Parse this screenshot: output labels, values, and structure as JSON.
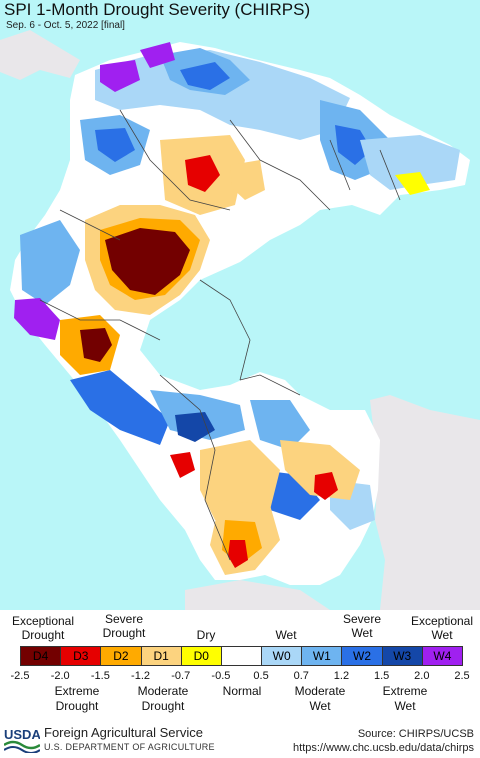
{
  "map": {
    "title": "SPI 1-Month Drought Severity (CHIRPS)",
    "subtitle": "Sep. 6 - Oct. 5, 2022 [final]"
  },
  "legend": {
    "top_labels": {
      "exceptional_drought": "Exceptional Drought",
      "severe_drought": "Severe Drought",
      "dry": "Dry",
      "wet": "Wet",
      "severe_wet": "Severe Wet",
      "exceptional_wet": "Exceptional Wet"
    },
    "categories": [
      {
        "code": "D4",
        "color": "#730000"
      },
      {
        "code": "D3",
        "color": "#e60000"
      },
      {
        "code": "D2",
        "color": "#ffaa00"
      },
      {
        "code": "D1",
        "color": "#fcd37f"
      },
      {
        "code": "D0",
        "color": "#ffff00"
      },
      {
        "code": "",
        "color": "#ffffff"
      },
      {
        "code": "W0",
        "color": "#aad7f7"
      },
      {
        "code": "W1",
        "color": "#6eb4f0"
      },
      {
        "code": "W2",
        "color": "#2a70e6"
      },
      {
        "code": "W3",
        "color": "#1447a8"
      },
      {
        "code": "W4",
        "color": "#a020f0"
      }
    ],
    "ticks": [
      "-2.5",
      "-2.0",
      "-1.5",
      "-1.2",
      "-0.7",
      "-0.5",
      "0.5",
      "0.7",
      "1.2",
      "1.5",
      "2.0",
      "2.5"
    ],
    "bottom_labels": {
      "extreme_drought": "Extreme Drought",
      "moderate_drought": "Moderate Drought",
      "normal": "Normal",
      "moderate_wet": "Moderate Wet",
      "extreme_wet": "Extreme Wet"
    }
  },
  "footer": {
    "agency": "Foreign Agricultural Service",
    "department": "U.S. DEPARTMENT OF AGRICULTURE",
    "logo_text": "USDA",
    "source": "Source: CHIRPS/UCSB",
    "url": "https://www.chc.ucsb.edu/data/chirps"
  }
}
